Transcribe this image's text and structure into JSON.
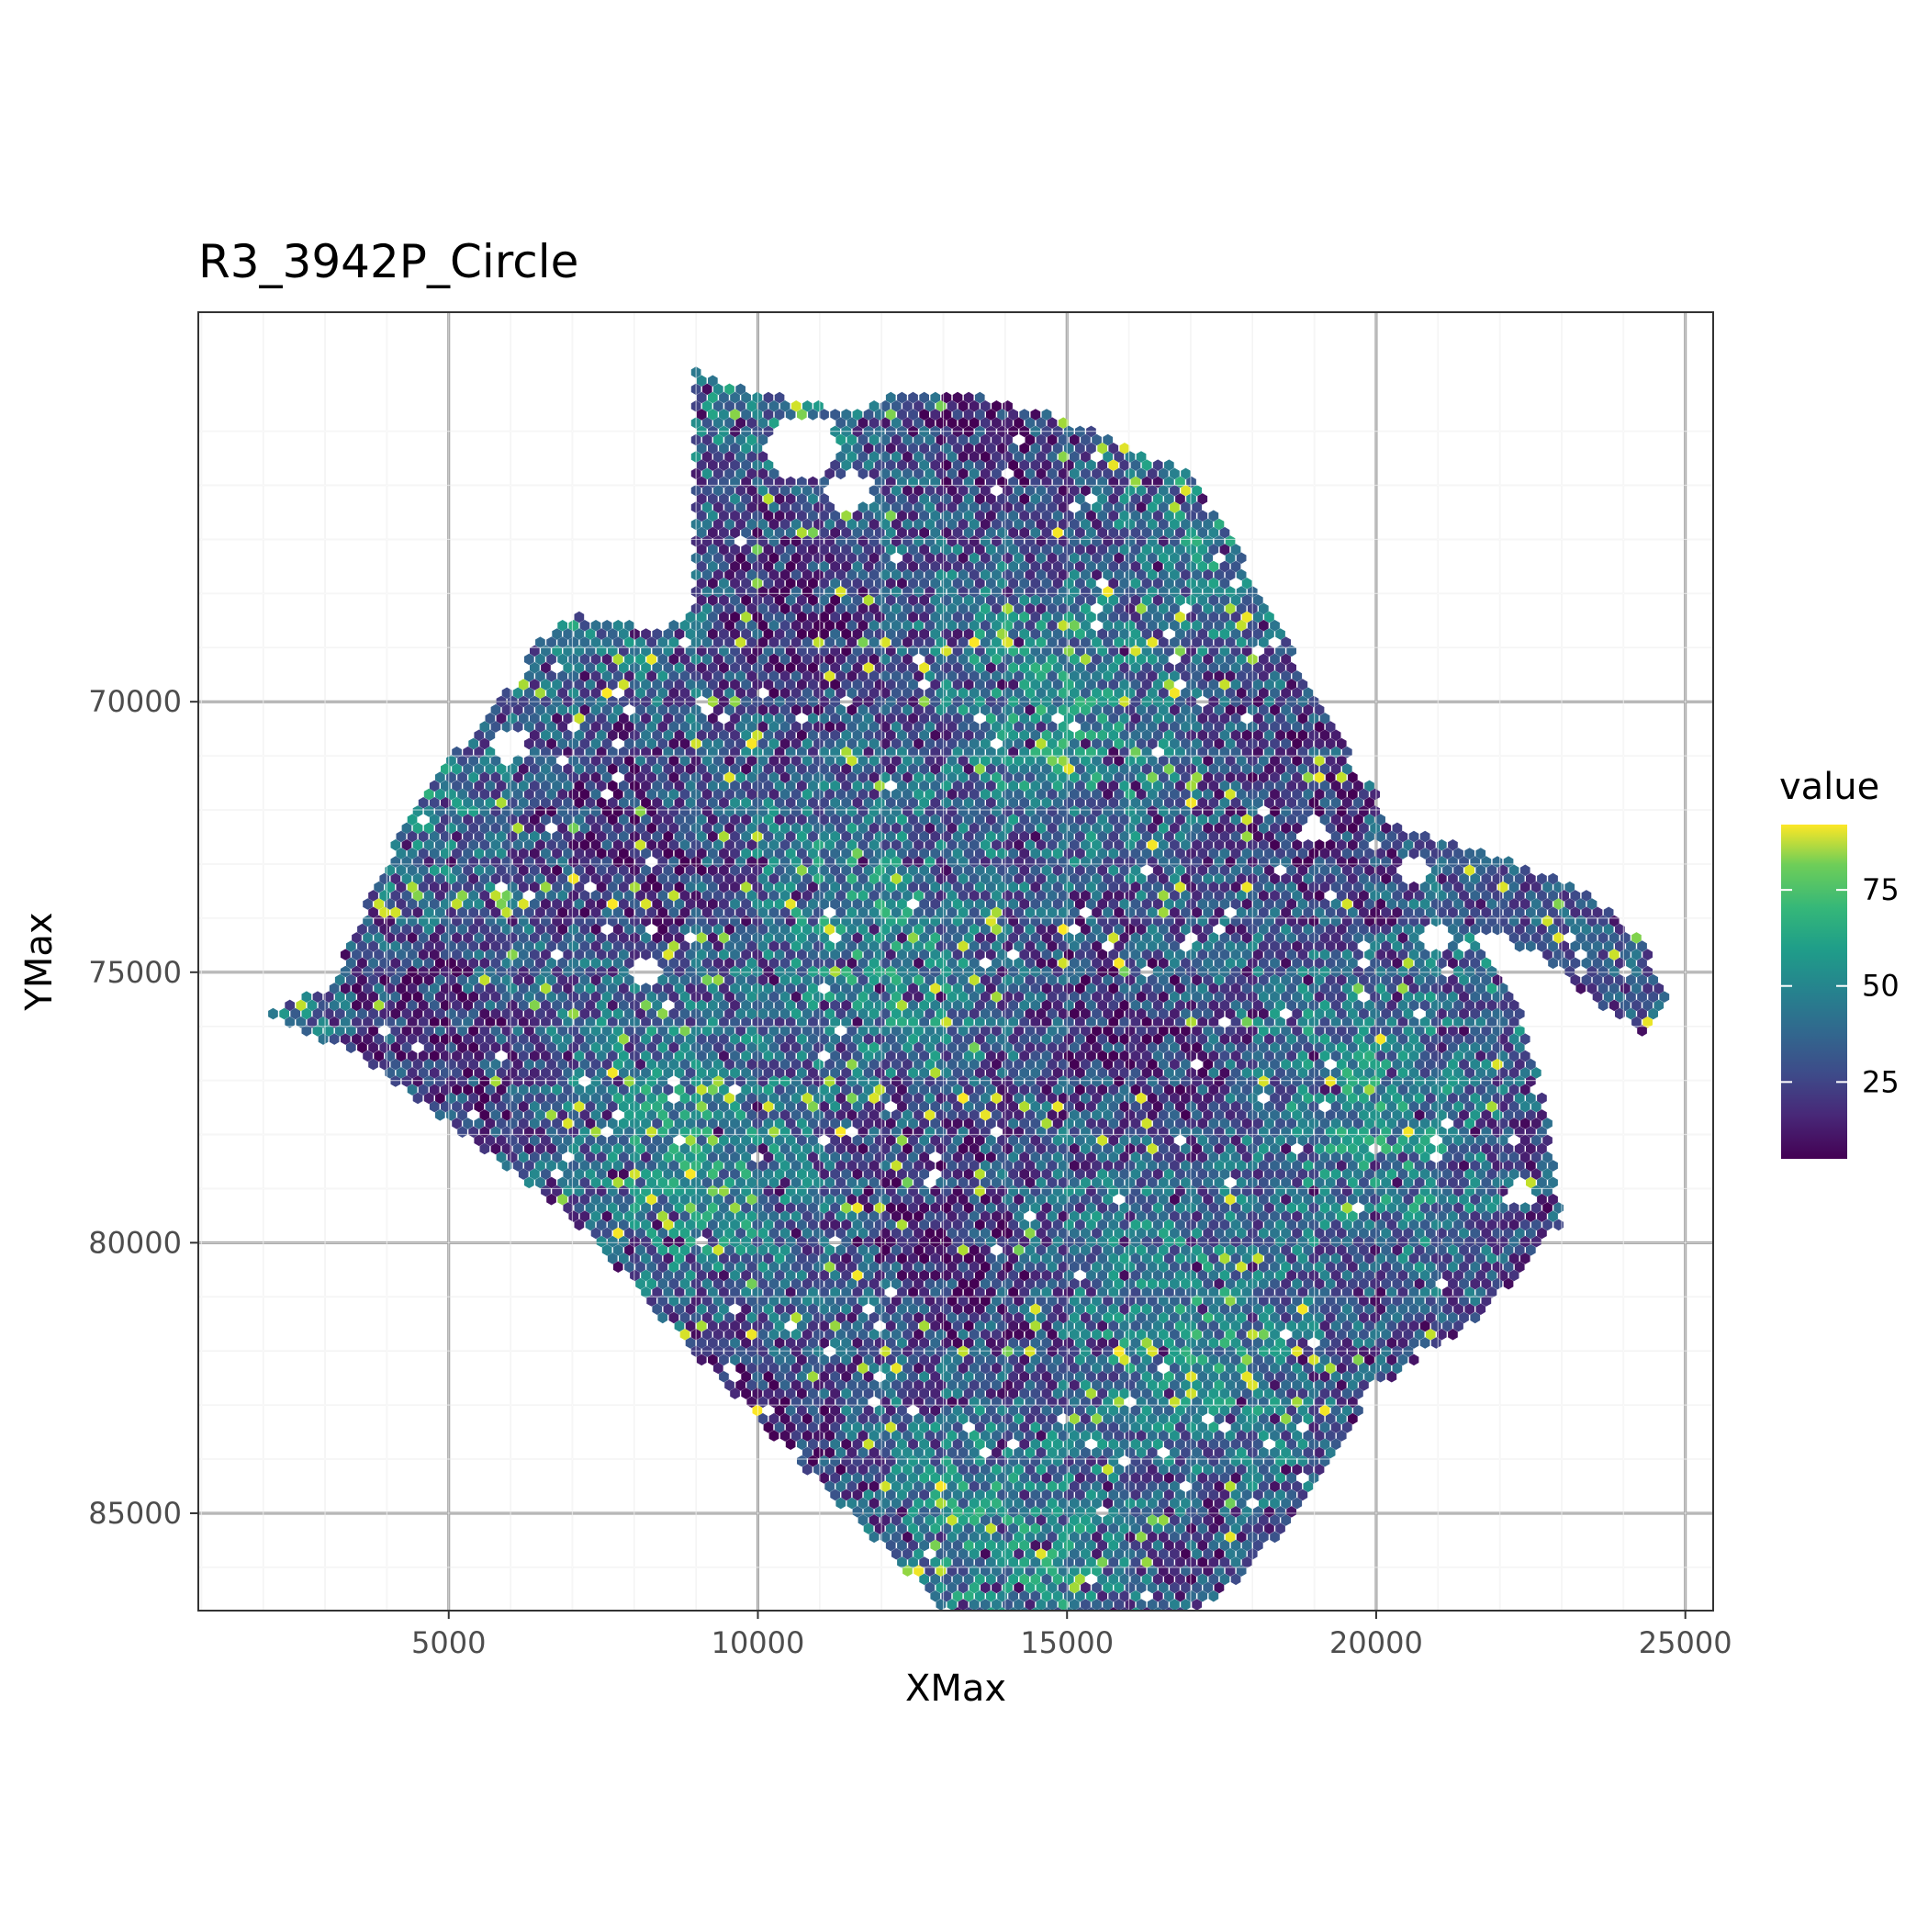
{
  "chart_data": {
    "type": "heatmap",
    "subtype": "hexbin",
    "title": "R3_3942P_Circle",
    "xlabel": "XMax",
    "ylabel": "YMax",
    "xlim": [
      950,
      25450
    ],
    "ylim": [
      62800,
      86800
    ],
    "y_reversed": true,
    "x_ticks": [
      5000,
      10000,
      15000,
      20000,
      25000
    ],
    "x_tick_labels": [
      "5000",
      "10000",
      "15000",
      "20000",
      "25000"
    ],
    "y_ticks": [
      70000,
      75000,
      80000,
      85000
    ],
    "y_tick_labels": [
      "70000",
      "75000",
      "80000",
      "85000"
    ],
    "grid": true,
    "legend": {
      "title": "value",
      "position": "right",
      "min": 5,
      "max": 92,
      "ticks": [
        25,
        50,
        75
      ],
      "tick_labels": [
        "25",
        "50",
        "75"
      ],
      "colormap": "viridis"
    },
    "region": {
      "main_outline": [
        [
          9000,
          63900
        ],
        [
          9400,
          64100
        ],
        [
          10800,
          64500
        ],
        [
          11700,
          64600
        ],
        [
          12300,
          64300
        ],
        [
          13500,
          64300
        ],
        [
          15000,
          64800
        ],
        [
          16000,
          65300
        ],
        [
          17000,
          65800
        ],
        [
          17600,
          66700
        ],
        [
          18000,
          67800
        ],
        [
          18500,
          68600
        ],
        [
          19000,
          70000
        ],
        [
          19800,
          71200
        ],
        [
          20300,
          72500
        ],
        [
          21000,
          73300
        ],
        [
          21700,
          74400
        ],
        [
          22300,
          75600
        ],
        [
          22700,
          77200
        ],
        [
          22900,
          78500
        ],
        [
          23000,
          79600
        ],
        [
          22300,
          80600
        ],
        [
          21500,
          81500
        ],
        [
          20500,
          82300
        ],
        [
          19500,
          83500
        ],
        [
          18600,
          85200
        ],
        [
          17600,
          86400
        ],
        [
          16200,
          87300
        ],
        [
          15500,
          88000
        ],
        [
          14600,
          88200
        ],
        [
          13700,
          87600
        ],
        [
          12700,
          86400
        ],
        [
          11800,
          85400
        ],
        [
          10800,
          84200
        ],
        [
          9600,
          82800
        ],
        [
          8300,
          81200
        ],
        [
          7300,
          79900
        ],
        [
          6300,
          78900
        ],
        [
          5500,
          78200
        ],
        [
          4500,
          77400
        ],
        [
          3500,
          76500
        ],
        [
          2200,
          75900
        ],
        [
          2100,
          75700
        ],
        [
          3200,
          75200
        ],
        [
          3300,
          74500
        ],
        [
          3800,
          73500
        ],
        [
          4200,
          72400
        ],
        [
          4700,
          71400
        ],
        [
          5500,
          70500
        ],
        [
          6100,
          69600
        ],
        [
          6500,
          68800
        ],
        [
          7100,
          68400
        ],
        [
          8500,
          68700
        ],
        [
          9000,
          68200
        ],
        [
          9000,
          66000
        ]
      ],
      "arc_outline": [
        [
          19000,
          72400
        ],
        [
          20000,
          72200
        ],
        [
          21500,
          72700
        ],
        [
          22800,
          73200
        ],
        [
          23600,
          73700
        ],
        [
          24300,
          74400
        ],
        [
          24700,
          75400
        ],
        [
          24300,
          76100
        ],
        [
          23500,
          75500
        ],
        [
          22700,
          74700
        ],
        [
          21500,
          74200
        ],
        [
          20300,
          73700
        ],
        [
          19400,
          73000
        ]
      ],
      "holes": [
        [
          10700,
          65300,
          600
        ],
        [
          11500,
          66100,
          350
        ],
        [
          17500,
          66300,
          260
        ],
        [
          19800,
          71200,
          250
        ],
        [
          20600,
          73100,
          280
        ],
        [
          23200,
          78600,
          300
        ],
        [
          22300,
          79100,
          250
        ],
        [
          20000,
          82800,
          250
        ],
        [
          8200,
          75000,
          200
        ],
        [
          6000,
          70800,
          300
        ],
        [
          19000,
          72400,
          260
        ],
        [
          21000,
          74400,
          260
        ]
      ]
    }
  }
}
